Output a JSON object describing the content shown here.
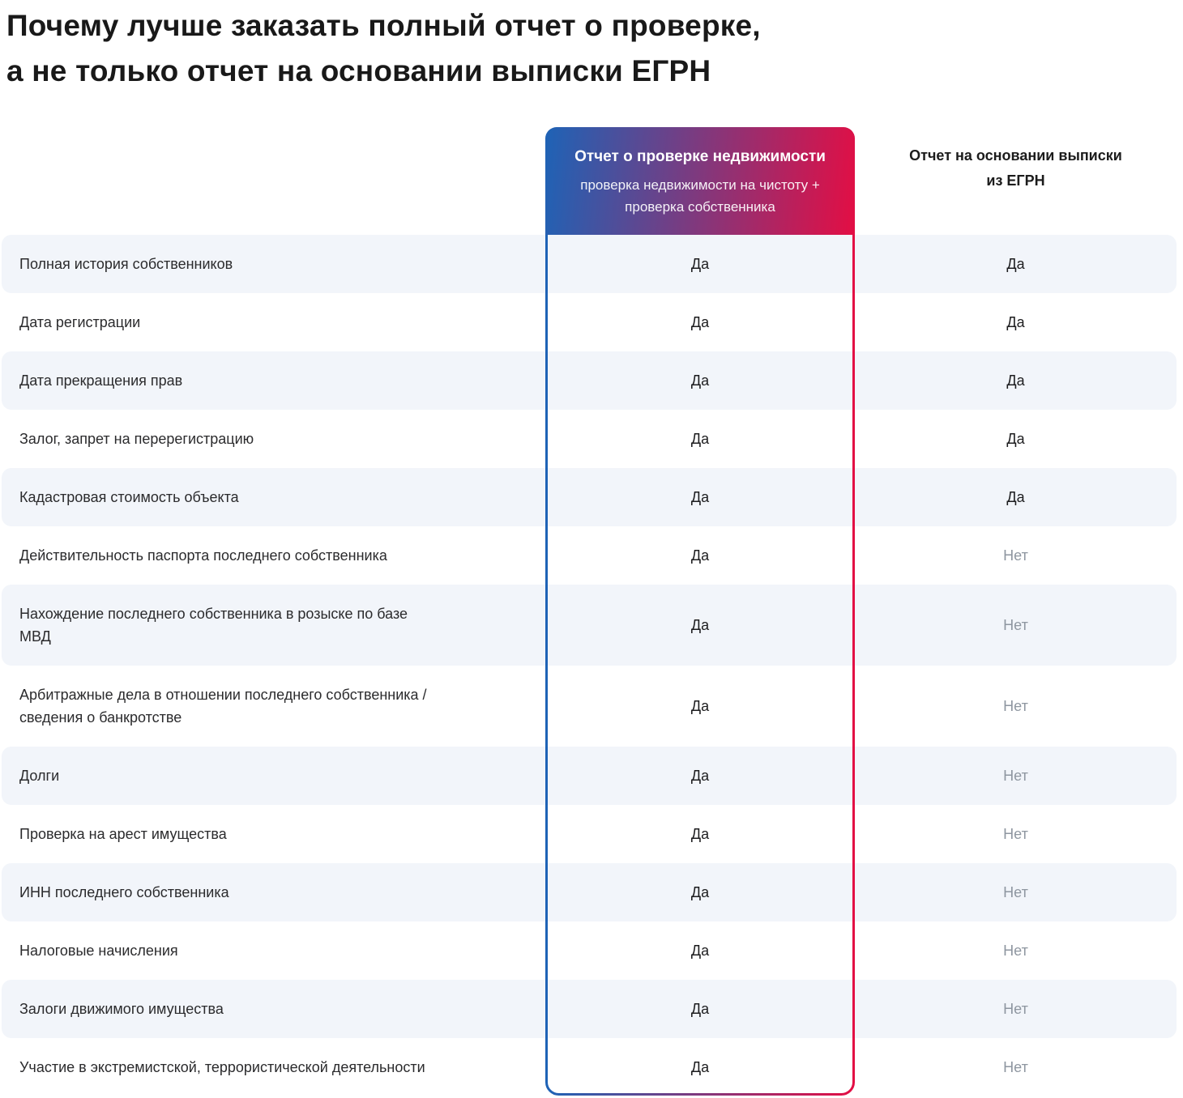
{
  "page": {
    "title_line1": "Почему лучше заказать полный отчет о проверке,",
    "title_line2": "а не только отчет на основании выписки ЕГРН"
  },
  "columns": {
    "full_report": {
      "title": "Отчет о проверке недвижимости",
      "subtitle": "проверка недвижимости на чистоту + проверка собственника"
    },
    "egrn_report": {
      "title": "Отчет на основании выписки из ЕГРН"
    }
  },
  "values": {
    "yes": "Да",
    "no": "Нет"
  },
  "rows": [
    {
      "label_lines": [
        "Полная история собственников"
      ],
      "full_report": "Да",
      "egrn_report": "Да"
    },
    {
      "label_lines": [
        "Дата регистрации"
      ],
      "full_report": "Да",
      "egrn_report": "Да"
    },
    {
      "label_lines": [
        "Дата прекращения прав"
      ],
      "full_report": "Да",
      "egrn_report": "Да"
    },
    {
      "label_lines": [
        "Залог, запрет на перерегистрацию"
      ],
      "full_report": "Да",
      "egrn_report": "Да"
    },
    {
      "label_lines": [
        "Кадастровая стоимость объекта"
      ],
      "full_report": "Да",
      "egrn_report": "Да"
    },
    {
      "label_lines": [
        "Действительность паспорта последнего собственника"
      ],
      "full_report": "Да",
      "egrn_report": "Нет"
    },
    {
      "label_lines": [
        "Нахождение последнего собственника в розыске по базе",
        "МВД"
      ],
      "full_report": "Да",
      "egrn_report": "Нет"
    },
    {
      "label_lines": [
        "Арбитражные дела в отношении последнего собственника /",
        "сведения о банкротстве"
      ],
      "full_report": "Да",
      "egrn_report": "Нет"
    },
    {
      "label_lines": [
        "Долги"
      ],
      "full_report": "Да",
      "egrn_report": "Нет"
    },
    {
      "label_lines": [
        "Проверка на арест имущества"
      ],
      "full_report": "Да",
      "egrn_report": "Нет"
    },
    {
      "label_lines": [
        "ИНН последнего собственника"
      ],
      "full_report": "Да",
      "egrn_report": "Нет"
    },
    {
      "label_lines": [
        "Налоговые начисления"
      ],
      "full_report": "Да",
      "egrn_report": "Нет"
    },
    {
      "label_lines": [
        "Залоги движимого имущества"
      ],
      "full_report": "Да",
      "egrn_report": "Нет"
    },
    {
      "label_lines": [
        "Участие в экстремистской, террористической деятельности"
      ],
      "full_report": "Да",
      "egrn_report": "Нет"
    }
  ],
  "colors": {
    "accent_blue": "#1e63b6",
    "accent_red": "#e30e44",
    "row_alt_bg": "#f2f5fa",
    "muted_text": "#8e96a0"
  }
}
